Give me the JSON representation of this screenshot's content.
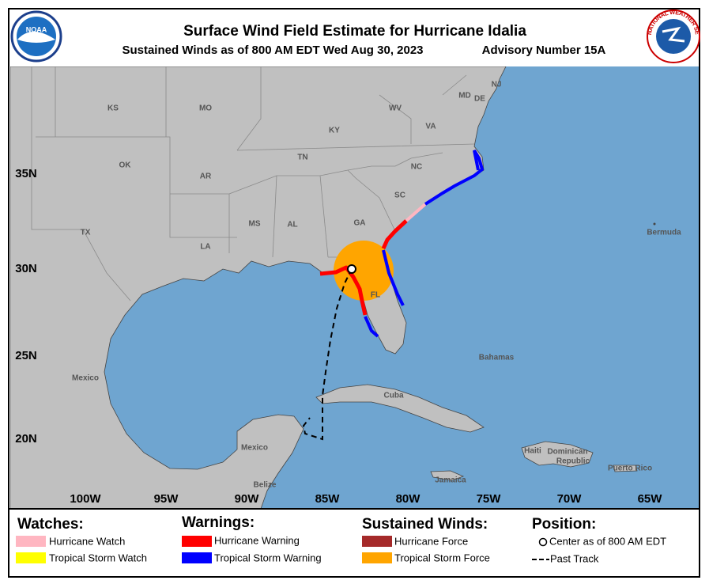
{
  "header": {
    "title": "Surface Wind Field Estimate for Hurricane Idalia",
    "subtitle": "Sustained Winds as of 800 AM EDT Wed Aug 30, 2023",
    "advisory": "Advisory Number 15A"
  },
  "logos": {
    "noaa": "NOAA",
    "nws": "NATIONAL WEATHER SERVICE"
  },
  "map": {
    "labels": [
      "KS",
      "MO",
      "KY",
      "WV",
      "VA",
      "NJ",
      "MD",
      "DE",
      "NC",
      "TN",
      "OK",
      "AR",
      "SC",
      "GA",
      "MS",
      "AL",
      "TX",
      "LA",
      "FL",
      "Mexico",
      "Mexico",
      "Cuba",
      "Bahamas",
      "Bermuda",
      "Haiti",
      "Dominican",
      "Republic",
      "Puerto Rico",
      "Jamaica",
      "Belize"
    ],
    "lat_labels": [
      "35N",
      "30N",
      "25N",
      "20N"
    ],
    "lon_labels": [
      "100W",
      "95W",
      "90W",
      "85W",
      "80W",
      "75W",
      "70W",
      "65W"
    ]
  },
  "legend": {
    "watches": {
      "title": "Watches:",
      "items": [
        "Hurricane Watch",
        "Tropical Storm Watch"
      ]
    },
    "warnings": {
      "title": "Warnings:",
      "items": [
        "Hurricane Warning",
        "Tropical Storm Warning"
      ]
    },
    "winds": {
      "title": "Sustained Winds:",
      "items": [
        "Hurricane Force",
        "Tropical Storm Force"
      ]
    },
    "position": {
      "title": "Position:",
      "items": [
        "Center as of 800 AM EDT",
        "Past Track"
      ]
    }
  }
}
